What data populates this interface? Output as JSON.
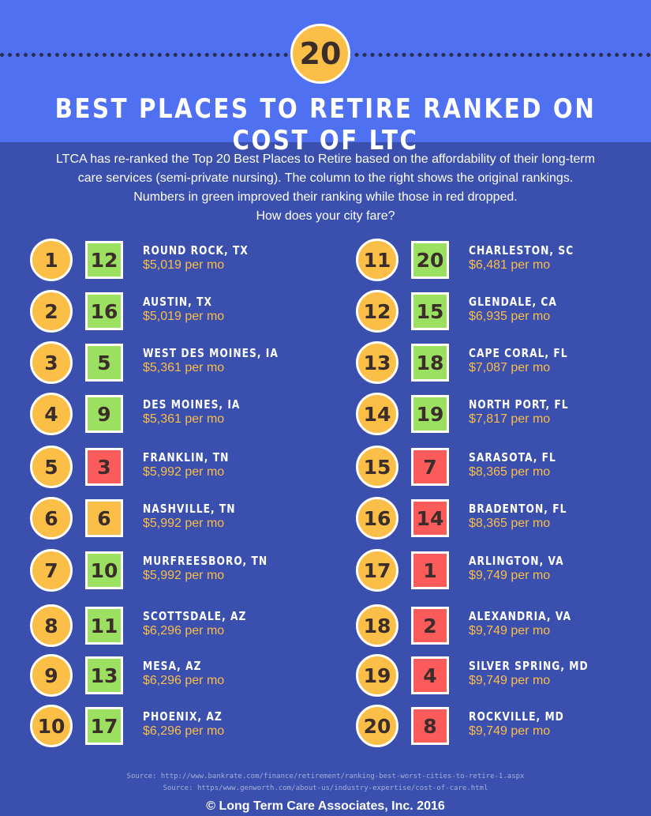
{
  "header": {
    "badge_number": "20",
    "title": "BEST PLACES TO RETIRE RANKED ON COST OF LTC"
  },
  "intro": {
    "lines": [
      "LTCA has re-ranked the Top 20 Best Places to Retire based on the affordability of their long-term",
      "care services (semi-private nursing). The column to the right shows the original rankings.",
      "Numbers in green improved their ranking while those in red dropped.",
      "How does your city fare?"
    ]
  },
  "colors": {
    "improved": "#9be061",
    "dropped": "#fb5b5b",
    "unchanged": "#fbbf48",
    "rank_circle": "#fbbf48",
    "cost_text": "#fbbf48"
  },
  "left": [
    {
      "rank": "1",
      "original": "12",
      "change": "improved",
      "city": "ROUND ROCK, TX",
      "cost": "$5,019 per mo"
    },
    {
      "rank": "2",
      "original": "16",
      "change": "improved",
      "city": "AUSTIN, TX",
      "cost": "$5,019 per mo"
    },
    {
      "rank": "3",
      "original": "5",
      "change": "improved",
      "city": "WEST DES MOINES, IA",
      "cost": "$5,361 per mo"
    },
    {
      "rank": "4",
      "original": "9",
      "change": "improved",
      "city": "DES MOINES, IA",
      "cost": "$5,361 per mo"
    },
    {
      "rank": "5",
      "original": "3",
      "change": "dropped",
      "city": "FRANKLIN, TN",
      "cost": "$5,992 per mo"
    },
    {
      "rank": "6",
      "original": "6",
      "change": "unchanged",
      "city": "NASHVILLE, TN",
      "cost": "$5,992 per mo"
    },
    {
      "rank": "7",
      "original": "10",
      "change": "improved",
      "city": "MURFREESBORO, TN",
      "cost": "$5,992 per mo"
    },
    {
      "rank": "8",
      "original": "11",
      "change": "improved",
      "city": "SCOTTSDALE, AZ",
      "cost": "$6,296 per mo"
    },
    {
      "rank": "9",
      "original": "13",
      "change": "improved",
      "city": "MESA, AZ",
      "cost": "$6,296 per mo"
    },
    {
      "rank": "10",
      "original": "17",
      "change": "improved",
      "city": "PHOENIX, AZ",
      "cost": "$6,296 per mo"
    }
  ],
  "right": [
    {
      "rank": "11",
      "original": "20",
      "change": "improved",
      "city": "CHARLESTON, SC",
      "cost": "$6,481 per mo"
    },
    {
      "rank": "12",
      "original": "15",
      "change": "improved",
      "city": "GLENDALE, CA",
      "cost": "$6,935 per mo"
    },
    {
      "rank": "13",
      "original": "18",
      "change": "improved",
      "city": "CAPE CORAL, FL",
      "cost": "$7,087 per mo"
    },
    {
      "rank": "14",
      "original": "19",
      "change": "improved",
      "city": "NORTH PORT, FL",
      "cost": "$7,817 per mo"
    },
    {
      "rank": "15",
      "original": "7",
      "change": "dropped",
      "city": "SARASOTA, FL",
      "cost": "$8,365 per mo"
    },
    {
      "rank": "16",
      "original": "14",
      "change": "dropped",
      "city": "BRADENTON, FL",
      "cost": "$8,365 per mo"
    },
    {
      "rank": "17",
      "original": "1",
      "change": "dropped",
      "city": "ARLINGTON, VA",
      "cost": "$9,749 per mo"
    },
    {
      "rank": "18",
      "original": "2",
      "change": "dropped",
      "city": "ALEXANDRIA, VA",
      "cost": "$9,749 per mo"
    },
    {
      "rank": "19",
      "original": "4",
      "change": "dropped",
      "city": "SILVER SPRING, MD",
      "cost": "$9,749 per mo"
    },
    {
      "rank": "20",
      "original": "8",
      "change": "dropped",
      "city": "ROCKVILLE, MD",
      "cost": "$9,749 per mo"
    }
  ],
  "footer": {
    "source1": "Source: http://www.bankrate.com/finance/retirement/ranking-best-worst-cities-to-retire-1.aspx",
    "source2": "Source: https/www.genworth.com/about-us/industry-expertise/cost-of-care.html",
    "copyright": "© Long Term Care Associates, Inc. 2016"
  }
}
